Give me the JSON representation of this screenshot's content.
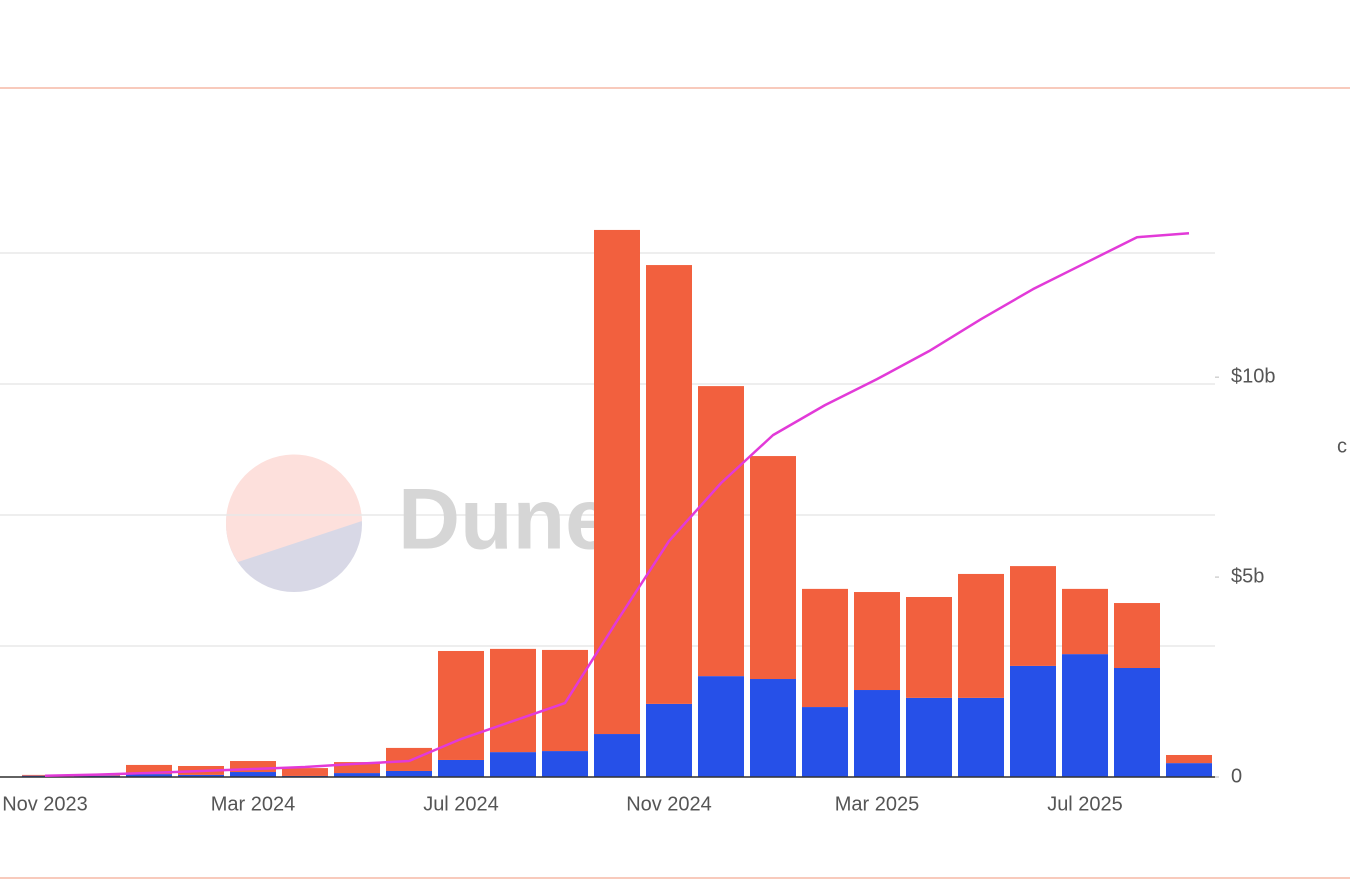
{
  "chart_data": {
    "type": "bar",
    "watermark": "Dune",
    "y2_title": "c",
    "categories": [
      "Nov 2023",
      null,
      null,
      null,
      "Mar 2024",
      null,
      null,
      null,
      "Jul 2024",
      null,
      null,
      null,
      "Nov 2024",
      null,
      null,
      null,
      "Mar 2025",
      null,
      null,
      null,
      "Jul 2025",
      null,
      null
    ],
    "series": [
      {
        "type": "bar",
        "color": "#2650e8",
        "values": [
          0.005,
          0.005,
          0.011,
          0.008,
          0.019,
          0.004,
          0.015,
          0.023,
          0.065,
          0.095,
          0.099,
          0.164,
          0.279,
          0.385,
          0.374,
          0.267,
          0.332,
          0.302,
          0.302,
          0.424,
          0.469,
          0.416,
          0.053
        ]
      },
      {
        "type": "bar",
        "color": "#f2603e",
        "values": [
          0.003,
          0.003,
          0.035,
          0.034,
          0.042,
          0.03,
          0.042,
          0.088,
          0.416,
          0.394,
          0.386,
          1.924,
          1.675,
          1.107,
          0.851,
          0.451,
          0.374,
          0.385,
          0.473,
          0.381,
          0.249,
          0.248,
          0.031
        ]
      },
      {
        "type": "line",
        "axis": "y2",
        "color": "#e23ad8",
        "values": [
          0.03,
          0.06,
          0.1,
          0.15,
          0.2,
          0.25,
          0.33,
          0.4,
          0.95,
          1.4,
          1.85,
          3.9,
          5.9,
          7.35,
          8.55,
          9.3,
          9.95,
          10.65,
          11.45,
          12.2,
          12.85,
          13.5,
          13.6
        ]
      }
    ],
    "ylim": [
      0,
      2.1
    ],
    "yticks": [
      0,
      0.5,
      1,
      1.5,
      2
    ],
    "y2lim": [
      0,
      13.76
    ],
    "y2ticks": [
      {
        "value": 0,
        "label": "0"
      },
      {
        "value": 5,
        "label": "$5b"
      },
      {
        "value": 10,
        "label": "$10b"
      }
    ],
    "grid": true
  }
}
